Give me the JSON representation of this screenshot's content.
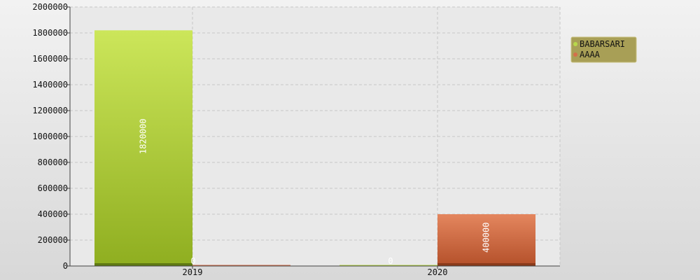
{
  "chart_data": {
    "type": "bar",
    "categories": [
      "2019",
      "2020"
    ],
    "series": [
      {
        "name": "BABARSARI",
        "values": [
          1820000,
          0
        ],
        "color": "#b8d84a"
      },
      {
        "name": "AAAA",
        "values": [
          0,
          400000
        ],
        "color": "#d4704a"
      }
    ],
    "data_labels": [
      [
        "1820000",
        "0"
      ],
      [
        "0",
        "400000"
      ]
    ],
    "ylim": [
      0,
      2000000
    ],
    "yticks": [
      "0",
      "200000",
      "400000",
      "600000",
      "800000",
      "1000000",
      "1200000",
      "1400000",
      "1600000",
      "1800000",
      "2000000"
    ],
    "grid": true,
    "legend_position": "right",
    "legend_background": "#a89f56"
  }
}
